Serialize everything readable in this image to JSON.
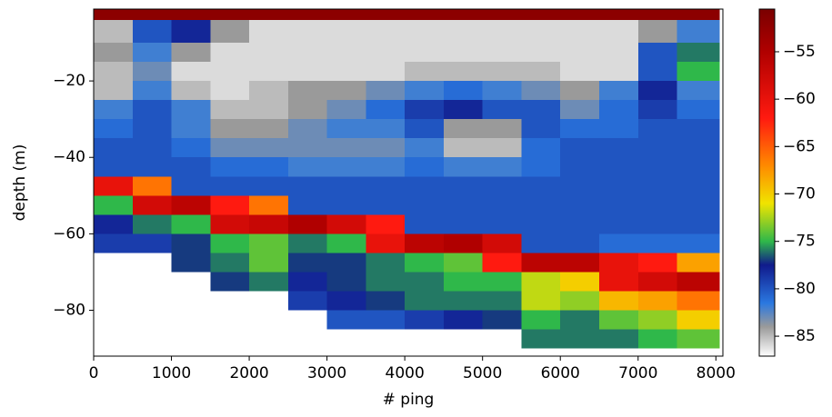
{
  "chart_data": {
    "type": "heatmap",
    "xlabel": "# ping",
    "ylabel": "depth (m)",
    "x": [
      0,
      500,
      1000,
      1500,
      2000,
      2500,
      3000,
      3500,
      4000,
      4500,
      5000,
      5500,
      6000,
      6500,
      7000,
      7500,
      8050
    ],
    "y": [
      -1.2,
      -4,
      -10,
      -15,
      -20,
      -25,
      -30,
      -35,
      -40,
      -45,
      -50,
      -55,
      -60,
      -65,
      -70,
      -75,
      -80,
      -85,
      -90
    ],
    "z": [
      [
        -52,
        -52,
        -52,
        -52,
        -52,
        -52,
        -52,
        -52,
        -52,
        -52,
        -52,
        -52,
        -52,
        -52,
        -52,
        -52
      ],
      [
        -85,
        -80,
        -78,
        -84,
        -86,
        -86,
        -86,
        -86,
        -86,
        -86,
        -86,
        -86,
        -86,
        -86,
        -84,
        -82
      ],
      [
        -84,
        -82,
        -84,
        -86,
        -86,
        -86,
        -86,
        -86,
        -86,
        -86,
        -86,
        -86,
        -86,
        -86,
        -80,
        -76
      ],
      [
        -85,
        -83,
        -86,
        -86,
        -86,
        -86,
        -86,
        -86,
        -85,
        -85,
        -85,
        -85,
        -86,
        -86,
        -80,
        -75
      ],
      [
        -85,
        -82,
        -85,
        -86,
        -85,
        -84,
        -84,
        -83,
        -82,
        -81,
        -82,
        -83,
        -84,
        -82,
        -78,
        -82
      ],
      [
        -82,
        -80,
        -82,
        -85,
        -85,
        -84,
        -83,
        -81,
        -79,
        -78,
        -80,
        -80,
        -83,
        -81,
        -79,
        -81
      ],
      [
        -81,
        -80,
        -82,
        -84,
        -84,
        -83,
        -82,
        -82,
        -80,
        -84,
        -84,
        -80,
        -81,
        -81,
        -80,
        -80
      ],
      [
        -80,
        -80,
        -81,
        -83,
        -83,
        -83,
        -83,
        -83,
        -82,
        -85,
        -85,
        -81,
        -80,
        -80,
        -80,
        -80
      ],
      [
        -80,
        -80,
        -80,
        -81,
        -81,
        -82,
        -82,
        -82,
        -81,
        -82,
        -82,
        -81,
        -80,
        -80,
        -80,
        -80
      ],
      [
        -60,
        -66,
        -80,
        -80,
        -80,
        -80,
        -80,
        -80,
        -80,
        -80,
        -80,
        -80,
        -80,
        -80,
        -80,
        -80
      ],
      [
        -75,
        -58,
        -56,
        -62,
        -66,
        -80,
        -80,
        -80,
        -80,
        -80,
        -80,
        -80,
        -80,
        -80,
        -80,
        -80
      ],
      [
        -78,
        -76,
        -75,
        -58,
        -57,
        -55,
        -58,
        -62,
        -80,
        -80,
        -80,
        -80,
        -80,
        -80,
        -80,
        -80
      ],
      [
        -79,
        -79,
        -77,
        -75,
        -74,
        -76,
        -75,
        -60,
        -56,
        -55,
        -58,
        -80,
        -80,
        -81,
        -81,
        -81
      ],
      [
        null,
        null,
        -77,
        -76,
        -74,
        -77,
        -77,
        -76,
        -75,
        -74,
        -62,
        -56,
        -56,
        -60,
        -62,
        -68
      ],
      [
        null,
        null,
        null,
        -77,
        -76,
        -78,
        -77,
        -76,
        -76,
        -75,
        -75,
        -72,
        -70,
        -60,
        -58,
        -56
      ],
      [
        null,
        null,
        null,
        null,
        null,
        -79,
        -78,
        -77,
        -76,
        -76,
        -76,
        -72,
        -73,
        -69,
        -68,
        -66
      ],
      [
        null,
        null,
        null,
        null,
        null,
        null,
        -80,
        -80,
        -79,
        -78,
        -77,
        -75,
        -76,
        -74,
        -73,
        -70
      ],
      [
        null,
        null,
        null,
        null,
        null,
        null,
        null,
        null,
        null,
        null,
        null,
        -76,
        -76,
        -76,
        -75,
        -74
      ]
    ],
    "xlim": [
      0,
      8090
    ],
    "ylim": [
      -92,
      -1.2
    ],
    "xticks": [
      0,
      1000,
      2000,
      3000,
      4000,
      5000,
      6000,
      7000,
      8000
    ],
    "yticks": [
      {
        "value": -20,
        "label": "−20"
      },
      {
        "value": -40,
        "label": "−40"
      },
      {
        "value": -60,
        "label": "−60"
      },
      {
        "value": -80,
        "label": "−80"
      }
    ],
    "zlim": [
      -87.1,
      -50.5
    ],
    "zticks": [
      {
        "value": -55,
        "label": "−55"
      },
      {
        "value": -60,
        "label": "−60"
      },
      {
        "value": -65,
        "label": "−65"
      },
      {
        "value": -70,
        "label": "−70"
      },
      {
        "value": -75,
        "label": "−75"
      },
      {
        "value": -80,
        "label": "−80"
      },
      {
        "value": -85,
        "label": "−85"
      }
    ],
    "colorscale": [
      [
        -87.1,
        "#ffffff"
      ],
      [
        -84,
        "#9a9a9a"
      ],
      [
        -81.5,
        "#2a78e0"
      ],
      [
        -77.5,
        "#101a8c"
      ],
      [
        -75,
        "#2fb84a"
      ],
      [
        -71,
        "#f0e400"
      ],
      [
        -67,
        "#ff8a00"
      ],
      [
        -62,
        "#ff1a10"
      ],
      [
        -55,
        "#b00000"
      ],
      [
        -50.5,
        "#7a0000"
      ]
    ]
  }
}
